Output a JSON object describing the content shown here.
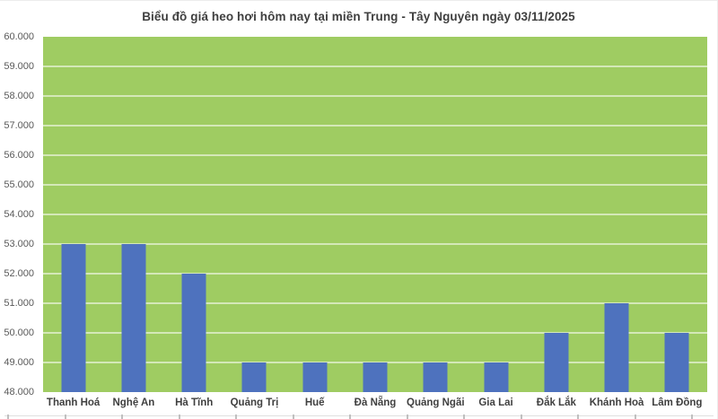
{
  "page": {
    "background": "#ffffff",
    "frame_border_color": "#ececec"
  },
  "chart_data": {
    "type": "bar",
    "title": "Biểu đồ giá heo hơi hôm nay tại miền Trung - Tây Nguyên ngày 03/11/2025",
    "categories": [
      "Thanh Hoá",
      "Nghệ An",
      "Hà Tĩnh",
      "Quảng Trị",
      "Huế",
      "Đà Nẵng",
      "Quảng Ngãi",
      "Gia Lai",
      "Đắk Lắk",
      "Khánh Hoà",
      "Lâm Đồng"
    ],
    "values": [
      53000,
      53000,
      52000,
      49000,
      49000,
      49000,
      49000,
      49000,
      50000,
      51000,
      50000
    ],
    "xlabel": "",
    "ylabel": "",
    "ylim": [
      48000,
      60000
    ],
    "ytick_step": 1000,
    "ytick_labels": [
      "60.000",
      "59.000",
      "58.000",
      "57.000",
      "56.000",
      "55.000",
      "54.000",
      "53.000",
      "52.000",
      "51.000",
      "50.000",
      "49.000",
      "48.000"
    ],
    "grid": true,
    "legend": "none",
    "colors": {
      "bar": "#4e72be",
      "plot_background": "#9fcc62",
      "gridline": "rgba(255,255,255,0.55)",
      "title_text": "#3f3f3f",
      "ytick_text": "#595959",
      "xtick_text": "#404040"
    }
  },
  "bottom_table_fragment": {
    "column_count": 12,
    "line_color": "#e0e0e0",
    "tick_color": "#bfbfbf"
  }
}
